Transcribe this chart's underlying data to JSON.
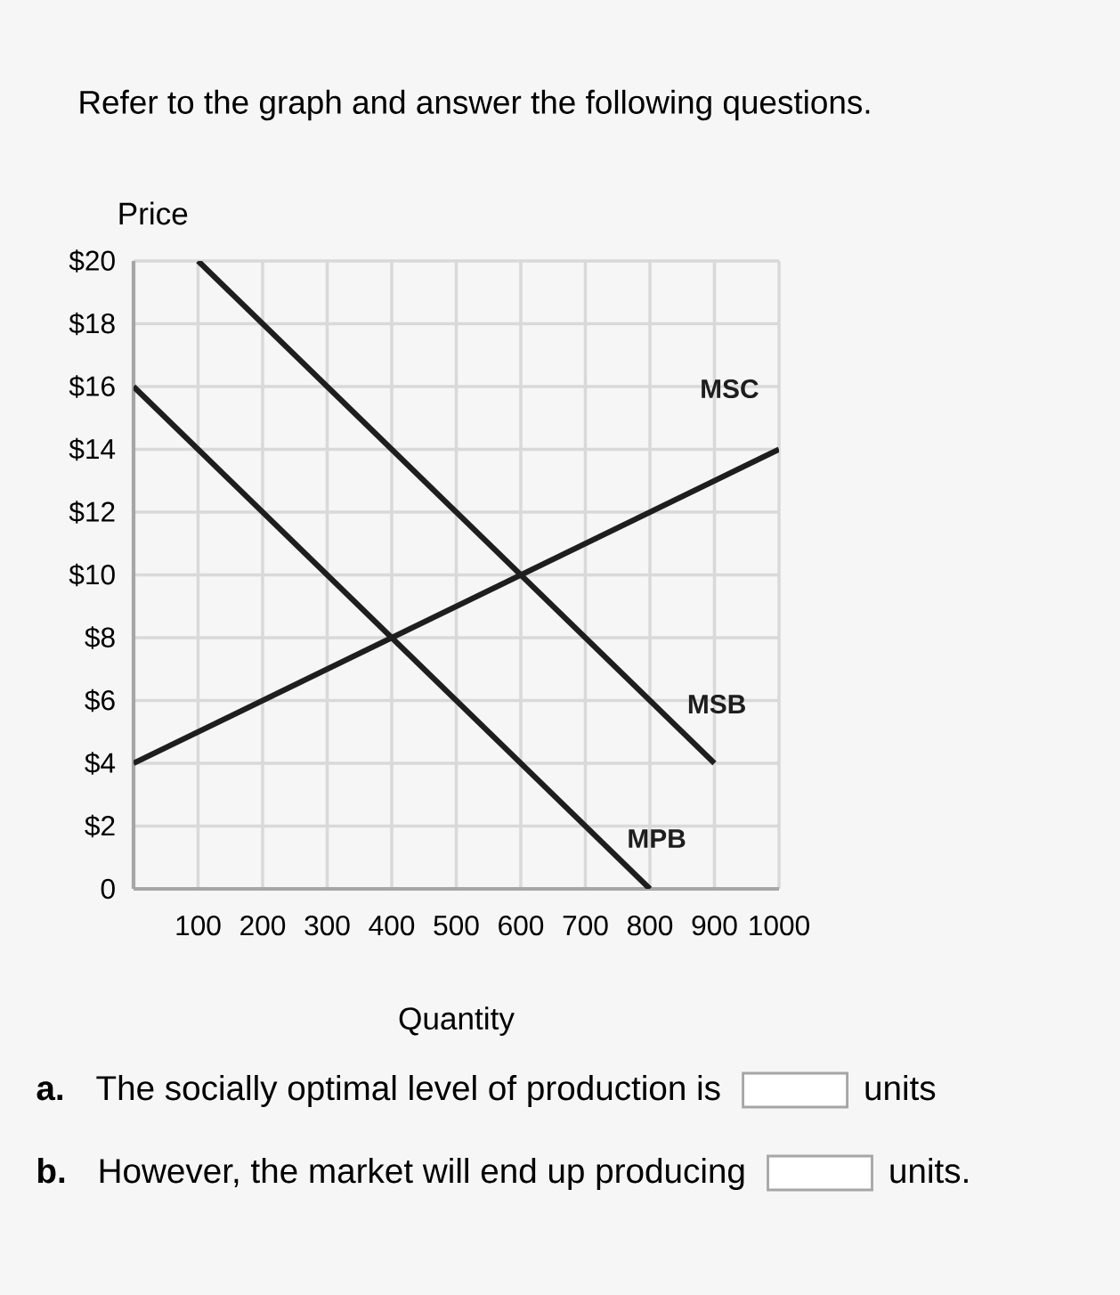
{
  "chart_data": {
    "type": "line",
    "title": "Refer to the graph and answer the following questions.",
    "xlabel": "Quantity",
    "ylabel": "Price",
    "series": [
      {
        "name": "MSC",
        "color": "#1e1e1e",
        "x": [
          0,
          1000
        ],
        "values": [
          4,
          14
        ]
      },
      {
        "name": "MSB",
        "color": "#1e1e1e",
        "x": [
          100,
          900
        ],
        "values": [
          20,
          4
        ]
      },
      {
        "name": "MPB",
        "color": "#1e1e1e",
        "x": [
          0,
          800
        ],
        "values": [
          16,
          0
        ]
      }
    ],
    "xlim": [
      0,
      1000
    ],
    "ylim": [
      0,
      20
    ],
    "xticks": [
      100,
      200,
      300,
      400,
      500,
      600,
      700,
      800,
      900,
      1000
    ],
    "yticks": [
      0,
      {
        "value": 2,
        "label": "$2"
      },
      {
        "value": 4,
        "label": "$4"
      },
      {
        "value": 6,
        "label": "$6"
      },
      {
        "value": 8,
        "label": "$8"
      },
      {
        "value": 10,
        "label": "$10"
      },
      {
        "value": 12,
        "label": "$12"
      },
      {
        "value": 14,
        "label": "$14"
      },
      {
        "value": 16,
        "label": "$16"
      },
      {
        "value": 18,
        "label": "$18"
      },
      {
        "value": 20,
        "label": "$20"
      }
    ],
    "grid": true,
    "marker": "none",
    "line_style": "solid",
    "annotations": [
      "a.",
      "The socially optimal level of production is",
      "units",
      "b.",
      "However, the market will end up producing",
      "units."
    ]
  }
}
